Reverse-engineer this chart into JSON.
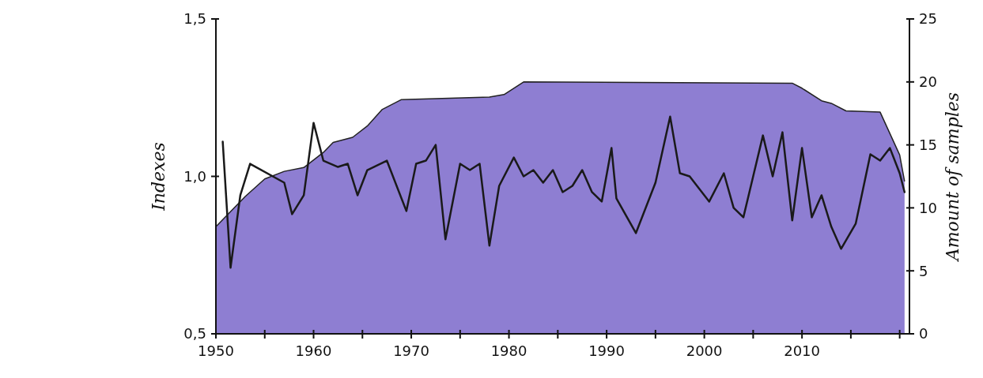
{
  "chart_data": {
    "type": "line",
    "ylabel": "Indexes",
    "y2label": "Amount of samples",
    "xlim": [
      1950,
      2021
    ],
    "xticks": [
      1950,
      {
        "value": 1955,
        "label": null
      },
      1960,
      {
        "value": 1965,
        "label": null
      },
      1970,
      {
        "value": 1975,
        "label": null
      },
      1980,
      {
        "value": 1985,
        "label": null
      },
      1990,
      {
        "value": 1995,
        "label": null
      },
      2000,
      {
        "value": 2005,
        "label": null
      },
      2010,
      {
        "value": 2015,
        "label": null
      },
      {
        "value": 2020,
        "label": null
      }
    ],
    "ylim": [
      0.5,
      1.5
    ],
    "yticks": [
      {
        "value": 0.5,
        "label": "0,5"
      },
      {
        "value": 1.0,
        "label": "1,0"
      },
      {
        "value": 1.5,
        "label": "1,5"
      }
    ],
    "y2lim": [
      0,
      25
    ],
    "y2ticks": [
      0,
      5,
      10,
      15,
      20,
      25
    ],
    "grid": false,
    "series": [
      {
        "type": "area",
        "axis": "y2",
        "color": "#8e7ed2",
        "x": [
          1950,
          1953,
          1955,
          1957,
          1959,
          1961,
          1962,
          1964,
          1965.5,
          1967,
          1969,
          1978,
          1979.5,
          1981.5,
          2009,
          2010,
          2012,
          2013,
          2014.5,
          2018,
          2020,
          2020.5
        ],
        "values": [
          8.5,
          10.9,
          12.3,
          12.9,
          13.2,
          14.4,
          15.2,
          15.6,
          16.5,
          17.8,
          18.6,
          18.8,
          19.0,
          20.0,
          19.9,
          19.5,
          18.5,
          18.3,
          17.7,
          17.6,
          14.2,
          12.1
        ]
      },
      {
        "color": "#1a1a1a",
        "x": [
          1950.7,
          1951.5,
          1952.5,
          1953.5,
          1957,
          1957.8,
          1959,
          1960,
          1961,
          1962.5,
          1963.5,
          1964.5,
          1965.5,
          1967.5,
          1969.5,
          1970.5,
          1971.5,
          1972.5,
          1973.5,
          1975,
          1976,
          1977,
          1978,
          1979,
          1980.5,
          1981.5,
          1982.5,
          1983.5,
          1984.5,
          1985.5,
          1986.5,
          1987.5,
          1988.5,
          1989.5,
          1990.5,
          1991,
          1993,
          1995,
          1996.5,
          1997.5,
          1998.5,
          1999.5,
          2000.5,
          2002,
          2003,
          2004,
          2005,
          2006,
          2007,
          2008,
          2009,
          2010,
          2011,
          2012,
          2013,
          2014,
          2015.5,
          2017,
          2018,
          2019,
          2020,
          2020.5
        ],
        "values": [
          1.11,
          0.71,
          0.94,
          1.04,
          0.98,
          0.88,
          0.94,
          1.17,
          1.05,
          1.03,
          1.04,
          0.94,
          1.02,
          1.05,
          0.89,
          1.04,
          1.05,
          1.1,
          0.8,
          1.04,
          1.02,
          1.04,
          0.78,
          0.97,
          1.06,
          1.0,
          1.02,
          0.98,
          1.02,
          0.95,
          0.97,
          1.02,
          0.95,
          0.92,
          1.09,
          0.93,
          0.82,
          0.98,
          1.19,
          1.01,
          1.0,
          0.96,
          0.92,
          1.01,
          0.9,
          0.87,
          1.0,
          1.13,
          1.0,
          1.14,
          0.86,
          1.09,
          0.87,
          0.94,
          0.84,
          0.77,
          0.85,
          1.07,
          1.05,
          1.09,
          1.01,
          0.95
        ]
      }
    ]
  }
}
